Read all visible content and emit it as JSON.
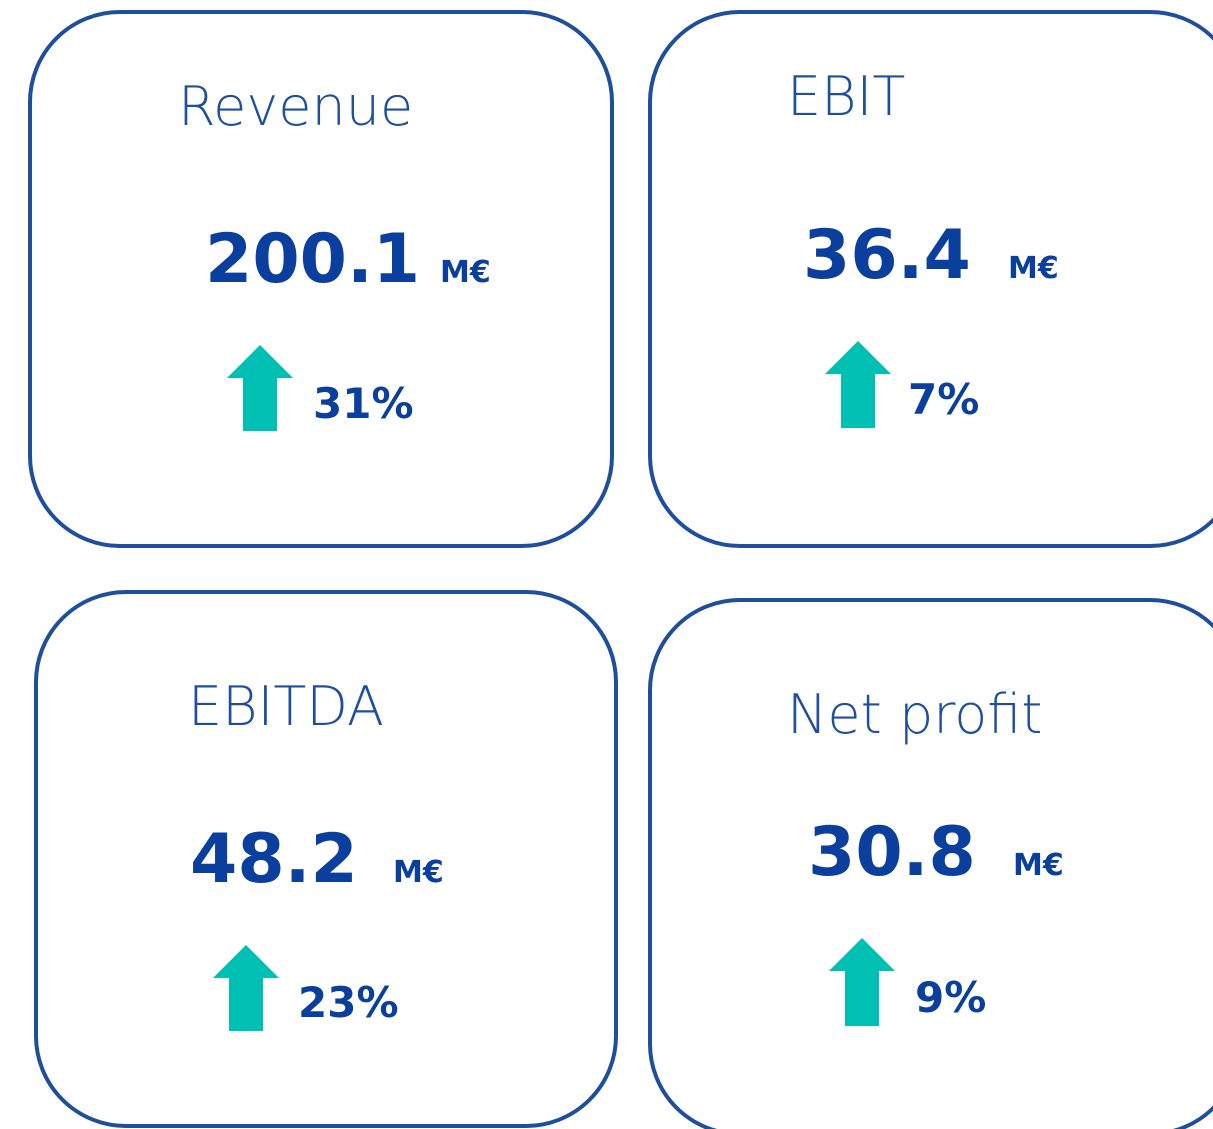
{
  "cards": [
    {
      "title": "Revenue",
      "value": "200.1",
      "unit": "M€",
      "change": "31%"
    },
    {
      "title": "EBIT",
      "value": "36.4",
      "unit": "M€",
      "change": "7%"
    },
    {
      "title": "EBITDA",
      "value": "48.2",
      "unit": "M€",
      "change": "23%"
    },
    {
      "title": "Net profit",
      "value": "30.8",
      "unit": "M€",
      "change": "9%"
    }
  ]
}
